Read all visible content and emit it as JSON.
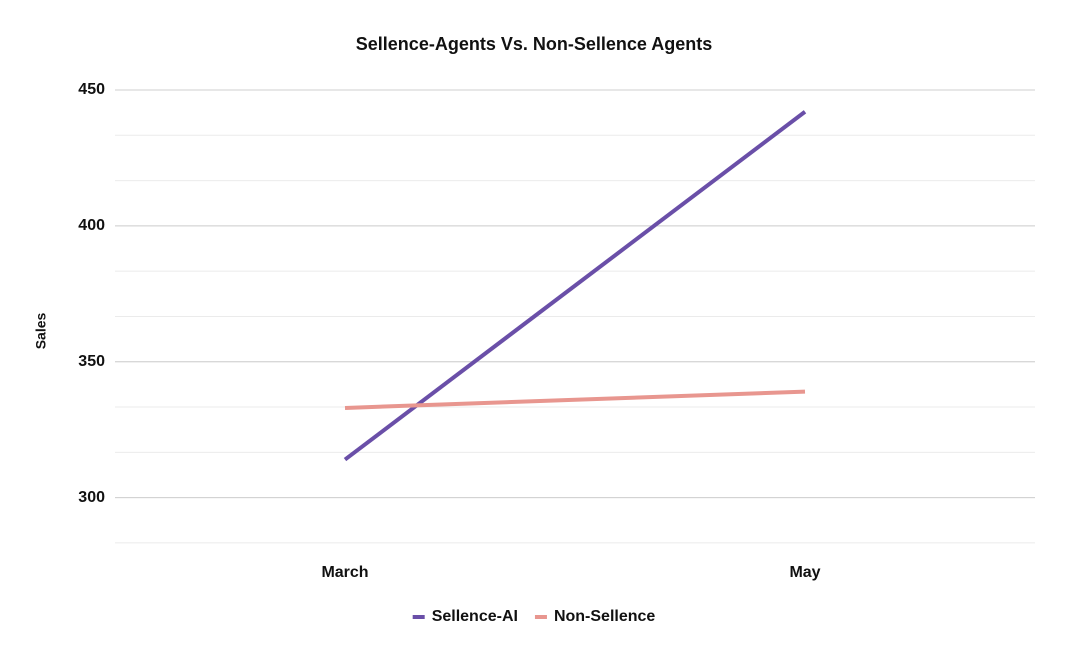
{
  "chart_data": {
    "type": "line",
    "title": "Sellence-Agents Vs. Non-Sellence Agents",
    "y_label": "Sales",
    "categories": [
      "March",
      "May"
    ],
    "series": [
      {
        "name": "Sellence-AI",
        "color": "#6a4fa8",
        "values": [
          314,
          442
        ]
      },
      {
        "name": "Non-Sellence",
        "color": "#e8968f",
        "values": [
          333,
          339
        ]
      }
    ],
    "ylim": [
      283.3,
      450
    ],
    "yticks": [
      300,
      350,
      400,
      450
    ],
    "minor_divisions": 3,
    "grid": true,
    "legend": "bottom"
  }
}
